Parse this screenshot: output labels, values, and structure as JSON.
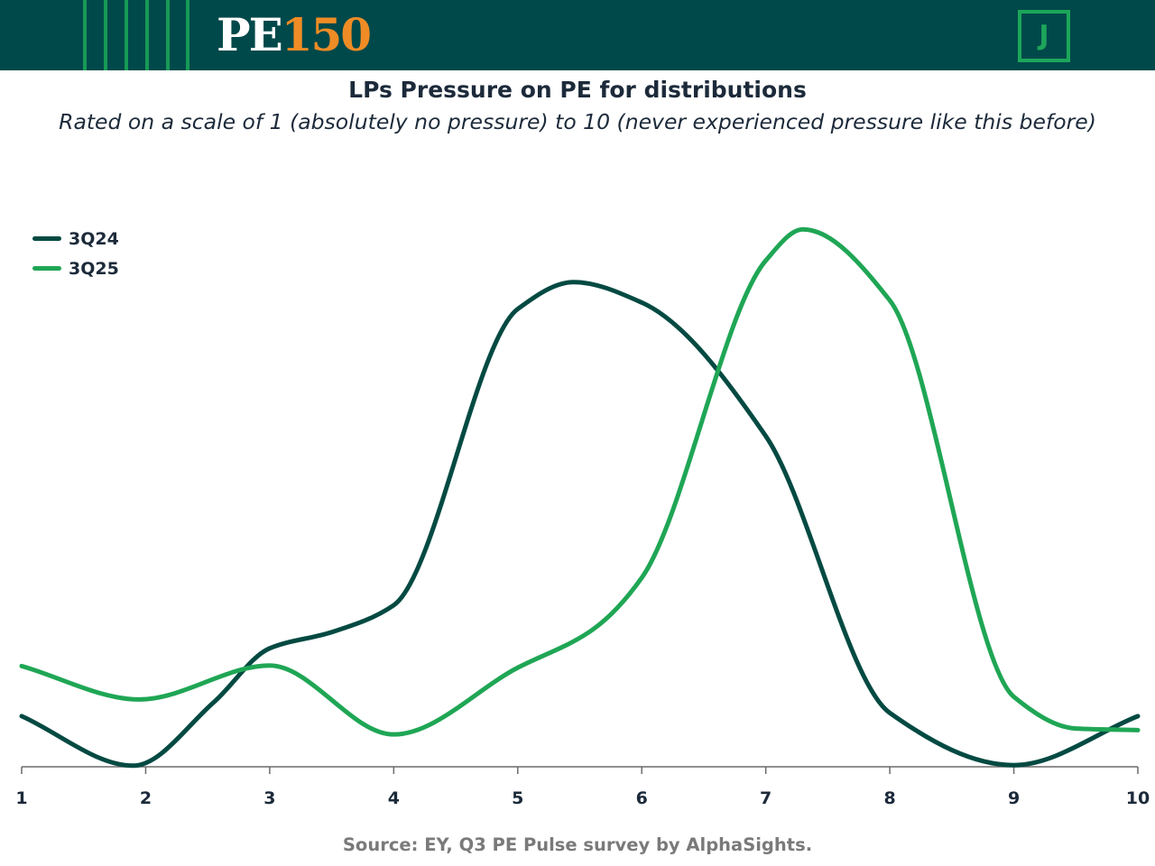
{
  "header": {
    "logo_pe": "PE",
    "logo_num": "150",
    "badge_letter": "J"
  },
  "colors": {
    "header_bg": "#00494a",
    "series_3q24": "#034a42",
    "series_3q25": "#1fa655",
    "logo_accent": "#f08c25"
  },
  "chart_data": {
    "type": "line",
    "title": "LPs Pressure on PE for distributions",
    "subtitle": "Rated on a scale of 1 (absolutely no pressure) to 10 (never experienced pressure like this before)",
    "xlabel": "",
    "ylabel": "",
    "x": [
      1,
      2,
      3,
      4,
      5,
      6,
      7,
      8,
      9,
      10
    ],
    "ylim": [
      0,
      1
    ],
    "grid": false,
    "legend_position": "top-left",
    "series": [
      {
        "name": "3Q24",
        "color": "#034a42",
        "points": [
          [
            1,
            0.094
          ],
          [
            1.9,
            0.002
          ],
          [
            2.55,
            0.12
          ],
          [
            3,
            0.22
          ],
          [
            3.5,
            0.25
          ],
          [
            4,
            0.3
          ],
          [
            5,
            0.85
          ],
          [
            5.45,
            0.9
          ],
          [
            6,
            0.862
          ],
          [
            7,
            0.614
          ],
          [
            8,
            0.1
          ],
          [
            9,
            0.003
          ],
          [
            10,
            0.094
          ]
        ]
      },
      {
        "name": "3Q25",
        "color": "#1fa655",
        "points": [
          [
            1,
            0.187
          ],
          [
            1.95,
            0.125
          ],
          [
            3,
            0.188
          ],
          [
            4,
            0.06
          ],
          [
            5,
            0.184
          ],
          [
            5.6,
            0.254
          ],
          [
            6,
            0.351
          ],
          [
            7,
            0.94
          ],
          [
            7.3,
            0.998
          ],
          [
            8,
            0.866
          ],
          [
            9,
            0.13
          ],
          [
            9.5,
            0.071
          ],
          [
            10,
            0.068
          ]
        ]
      }
    ]
  },
  "source": "Source: EY, Q3 PE Pulse survey by AlphaSights."
}
